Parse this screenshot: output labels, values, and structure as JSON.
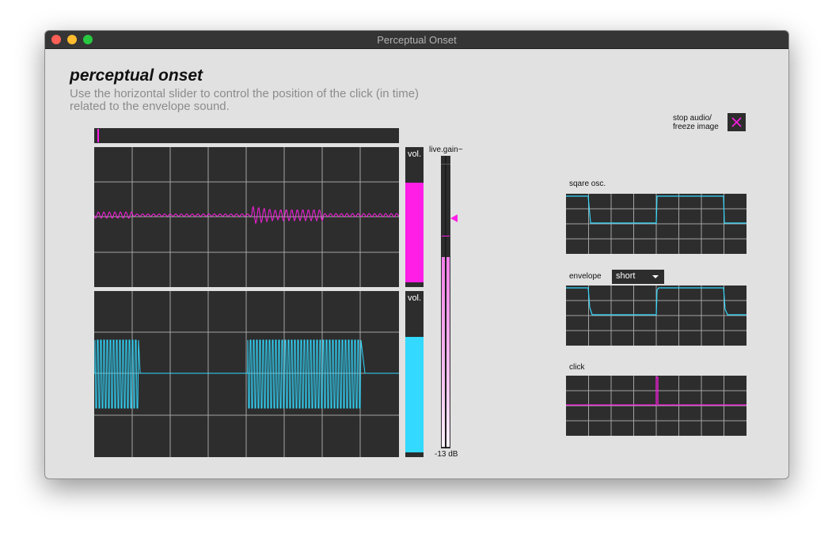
{
  "window": {
    "title": "Perceptual Onset"
  },
  "header": {
    "title": "perceptual onset",
    "description": "Use the horizontal slider to control the position of the click (in time) related to the envelope sound."
  },
  "controls": {
    "stop_label_line1": "stop audio/",
    "stop_label_line2": "freeze image"
  },
  "meters": {
    "vol_label_top": "vol.",
    "vol_label_bottom": "vol.",
    "gain_label": "live.gain~",
    "gain_value": "-13 dB"
  },
  "panels": {
    "square_label": "sqare osc.",
    "envelope_label": "envelope",
    "envelope_mode": "short",
    "click_label": "click"
  },
  "colors": {
    "magenta": "#ff1ee6",
    "cyan": "#33d9ff",
    "panel": "#2d2d2d",
    "grid": "#a4a4a4"
  }
}
